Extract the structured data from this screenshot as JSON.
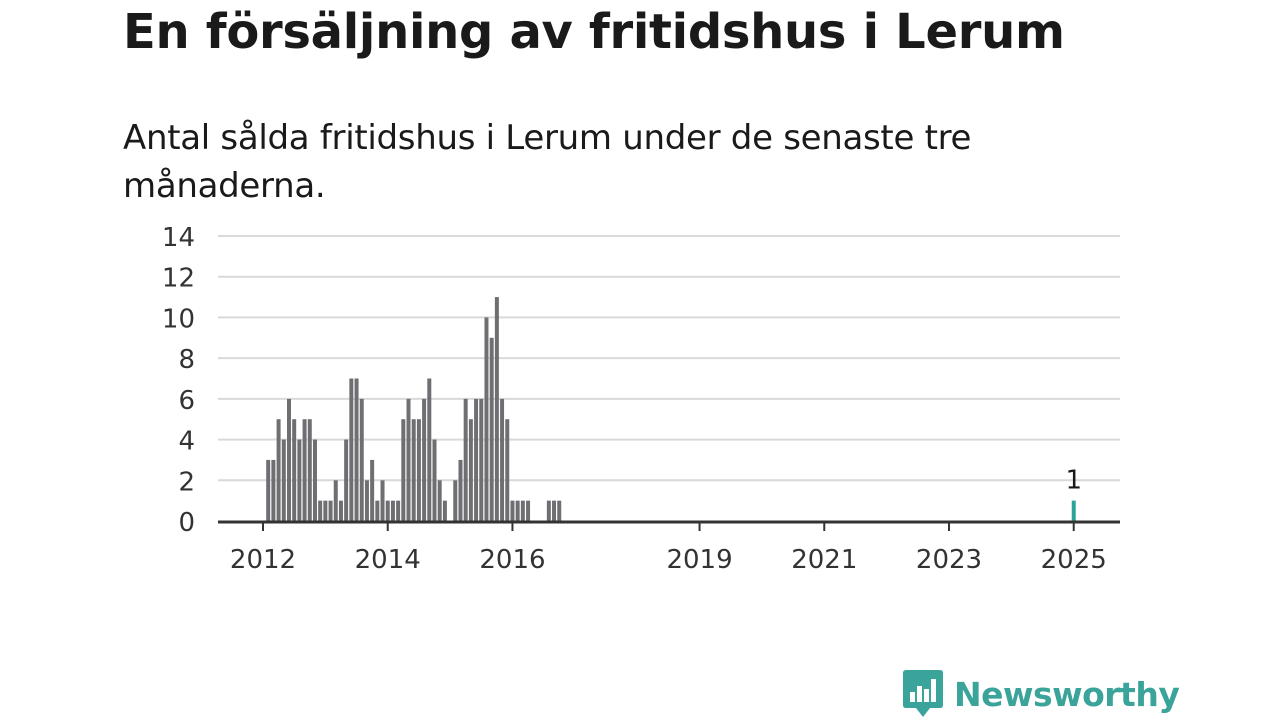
{
  "header": {
    "title": "En försäljning av fritidshus i Lerum",
    "subtitle": "Antal sålda fritidshus i Lerum under de senaste tre månaderna."
  },
  "brand": {
    "name": "Newsworthy",
    "color": "#3aa39a"
  },
  "colors": {
    "bar": "#6e6e73",
    "highlight": "#2aa39a",
    "grid": "#d9d9d9",
    "axis": "#333333"
  },
  "chart_data": {
    "type": "bar",
    "title": "En försäljning av fritidshus i Lerum",
    "subtitle": "Antal sålda fritidshus i Lerum under de senaste tre månaderna.",
    "xlabel": "",
    "ylabel": "",
    "ylim": [
      0,
      14
    ],
    "yticks": [
      0,
      2,
      4,
      6,
      8,
      10,
      12,
      14
    ],
    "xticks": [
      "2012",
      "2014",
      "2016",
      "2019",
      "2021",
      "2023",
      "2025"
    ],
    "grid": true,
    "start": "2011-12",
    "values": [
      0,
      0,
      3,
      3,
      5,
      4,
      6,
      5,
      4,
      5,
      5,
      4,
      1,
      1,
      1,
      2,
      1,
      4,
      7,
      7,
      6,
      2,
      3,
      1,
      2,
      1,
      1,
      1,
      5,
      6,
      5,
      5,
      6,
      7,
      4,
      2,
      1,
      0,
      2,
      3,
      6,
      5,
      6,
      6,
      10,
      9,
      11,
      6,
      5,
      1,
      1,
      1,
      1,
      0,
      0,
      0,
      1,
      1,
      1,
      0,
      0,
      0,
      0,
      0,
      0,
      0,
      0,
      0,
      0,
      0,
      0,
      0,
      0,
      0,
      0,
      0,
      0,
      0,
      0,
      0,
      0,
      0,
      0,
      0,
      0,
      0,
      0,
      0,
      0,
      0,
      0,
      0,
      0,
      0,
      0,
      0,
      0,
      0,
      0,
      0,
      0,
      0,
      0,
      0,
      0,
      0,
      0,
      0,
      0,
      0,
      0,
      0,
      0,
      0,
      0,
      0,
      0,
      0,
      0,
      0,
      0,
      0,
      0,
      0,
      0,
      0,
      0,
      0,
      0,
      0,
      0,
      0,
      0,
      0,
      0,
      0,
      0,
      0,
      0,
      0,
      0,
      0,
      0,
      0,
      0,
      0,
      0,
      0,
      0,
      0,
      0,
      0,
      0,
      0,
      0,
      0,
      0,
      1
    ],
    "highlight": {
      "label": "1",
      "value": 1,
      "color": "#2aa39a"
    }
  }
}
